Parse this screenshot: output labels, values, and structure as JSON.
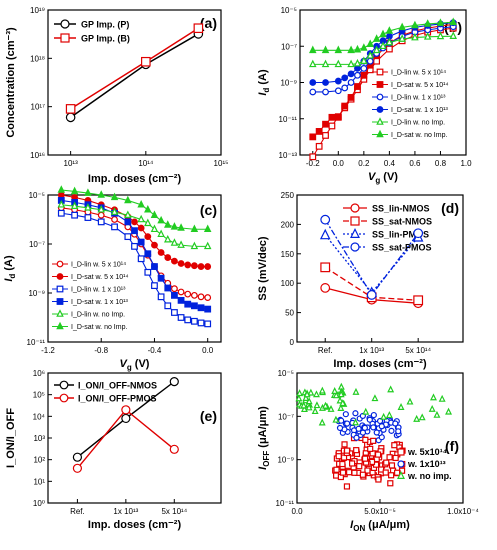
{
  "chart_data": [
    {
      "panel": "(a)",
      "type": "line",
      "xlabel": "Imp. doses (cm⁻²)",
      "ylabel": "Concentration (cm⁻³)",
      "xscale": "log",
      "yscale": "log",
      "xlim": [
        5000000000000.0,
        1000000000000000.0
      ],
      "ylim": [
        1e+16,
        1e+19
      ],
      "xticks": [
        "10¹³",
        "10¹⁴",
        "10¹⁵"
      ],
      "yticks": [
        "10¹⁶",
        "10¹⁷",
        "10¹⁸",
        "10¹⁹"
      ],
      "legend_position": "top-left",
      "series": [
        {
          "name": "GP Imp. (P)",
          "color": "#000000",
          "marker": "circle",
          "x": [
            10000000000000.0,
            100000000000000.0,
            500000000000000.0
          ],
          "y": [
            6e+16,
            7.5e+17,
            3.2e+18
          ]
        },
        {
          "name": "GP Imp. (B)",
          "color": "#e00000",
          "marker": "square",
          "x": [
            10000000000000.0,
            100000000000000.0,
            500000000000000.0
          ],
          "y": [
            9e+16,
            8.5e+17,
            4.2e+18
          ]
        }
      ]
    },
    {
      "panel": "(b)",
      "type": "line",
      "xlabel": "V",
      "xlabel_sub": "g",
      "xunit": "(V)",
      "ylabel": "I",
      "ylabel_sub": "d",
      "yunit": "(A)",
      "yscale": "log",
      "xlim": [
        -0.3,
        1.0
      ],
      "ylim": [
        1e-13,
        1e-05
      ],
      "xticks": [
        "-0.2",
        "0.0",
        "0.2",
        "0.4",
        "0.6",
        "0.8",
        "1.0"
      ],
      "yticks": [
        "10⁻¹³",
        "10⁻¹¹",
        "10⁻⁹",
        "10⁻⁷",
        "10⁻⁵"
      ],
      "legend_position": "bottom-right",
      "series": [
        {
          "name": "I_D-lin  w. 5 x 10¹⁴",
          "color": "#e00000",
          "marker": "square",
          "filled": false,
          "x": [
            -0.2,
            -0.15,
            -0.1,
            -0.05,
            0.0,
            0.05,
            0.1,
            0.15,
            0.2,
            0.25,
            0.3,
            0.4,
            0.5,
            0.6,
            0.7,
            0.8,
            0.9
          ],
          "y": [
            8e-14,
            3e-13,
            1.2e-12,
            4e-12,
            1.3e-11,
            4e-11,
            1.2e-10,
            4e-10,
            1.5e-09,
            5e-09,
            1.5e-08,
            7e-08,
            2e-07,
            4e-07,
            6e-07,
            8e-07,
            1e-06
          ]
        },
        {
          "name": "I_D-sat  w. 5 x 10¹⁴",
          "color": "#e00000",
          "marker": "square",
          "filled": true,
          "x": [
            -0.2,
            -0.15,
            -0.1,
            -0.05,
            0.0,
            0.05,
            0.1,
            0.15,
            0.2,
            0.25,
            0.3,
            0.4,
            0.5,
            0.6,
            0.7,
            0.8,
            0.9
          ],
          "y": [
            1e-12,
            2e-12,
            5e-12,
            1.2e-11,
            1.2e-11,
            5e-11,
            1.5e-10,
            6e-10,
            2.5e-09,
            9e-09,
            3e-08,
            1.5e-07,
            4e-07,
            7e-07,
            1e-06,
            1.3e-06,
            1.6e-06
          ]
        },
        {
          "name": "I_D-lin  w. 1 x 10¹³",
          "color": "#0022dd",
          "marker": "circle",
          "filled": false,
          "x": [
            -0.2,
            -0.1,
            0.0,
            0.05,
            0.1,
            0.15,
            0.2,
            0.25,
            0.3,
            0.35,
            0.4,
            0.5,
            0.6,
            0.7,
            0.8,
            0.9
          ],
          "y": [
            3e-10,
            3e-10,
            3.5e-10,
            5e-10,
            1e-09,
            2.5e-09,
            6e-09,
            1.5e-08,
            4e-08,
            8e-08,
            1.5e-07,
            3.5e-07,
            6e-07,
            8e-07,
            1e-06,
            1.2e-06
          ]
        },
        {
          "name": "I_D-sat  w. 1 x 10¹³",
          "color": "#0022dd",
          "marker": "circle",
          "filled": true,
          "x": [
            -0.2,
            -0.1,
            0.0,
            0.05,
            0.1,
            0.15,
            0.2,
            0.25,
            0.3,
            0.35,
            0.4,
            0.5,
            0.6,
            0.7,
            0.8,
            0.9
          ],
          "y": [
            1e-09,
            1e-09,
            1.2e-09,
            1.8e-09,
            3e-09,
            6e-09,
            1.5e-08,
            4e-08,
            1e-07,
            2e-07,
            3.5e-07,
            7e-07,
            1.1e-06,
            1.4e-06,
            1.7e-06,
            2e-06
          ]
        },
        {
          "name": "I_D-lin  w. no Imp.",
          "color": "#22cc22",
          "marker": "triangle",
          "filled": false,
          "x": [
            -0.2,
            -0.1,
            0.0,
            0.1,
            0.15,
            0.2,
            0.25,
            0.3,
            0.35,
            0.4,
            0.5,
            0.6,
            0.7,
            0.8,
            0.9
          ],
          "y": [
            1e-08,
            1e-08,
            1e-08,
            1e-08,
            1.1e-08,
            1.5e-08,
            3e-08,
            6e-08,
            1e-07,
            1.6e-07,
            2.5e-07,
            3e-07,
            3.3e-07,
            3.5e-07,
            3.6e-07
          ]
        },
        {
          "name": "I_D-sat  w. no Imp.",
          "color": "#22cc22",
          "marker": "triangle",
          "filled": true,
          "x": [
            -0.2,
            -0.1,
            0.0,
            0.1,
            0.15,
            0.2,
            0.25,
            0.3,
            0.35,
            0.4,
            0.5,
            0.6,
            0.7,
            0.8,
            0.9
          ],
          "y": [
            6e-08,
            6e-08,
            6e-08,
            6e-08,
            6.5e-08,
            8e-08,
            1.3e-07,
            2.5e-07,
            4.5e-07,
            7e-07,
            1.1e-06,
            1.4e-06,
            1.7e-06,
            1.9e-06,
            2.1e-06
          ]
        }
      ]
    },
    {
      "panel": "(c)",
      "type": "line",
      "xlabel": "V",
      "xlabel_sub": "g",
      "xunit": "(V)",
      "ylabel": "I",
      "ylabel_sub": "d",
      "yunit": "(A)",
      "yscale": "log",
      "xlim": [
        -1.2,
        0.1
      ],
      "ylim": [
        1e-11,
        1e-05
      ],
      "xticks": [
        "-1.2",
        "-0.8",
        "-0.4",
        "0.0"
      ],
      "yticks": [
        "10⁻¹¹",
        "10⁻⁹",
        "10⁻⁷",
        "10⁻⁵"
      ],
      "legend_position": "bottom-left",
      "series": [
        {
          "name": "I_D-lin  w. 5 x 10¹⁴",
          "color": "#e00000",
          "marker": "circle",
          "filled": false,
          "x": [
            -1.1,
            -1.0,
            -0.9,
            -0.8,
            -0.7,
            -0.6,
            -0.55,
            -0.5,
            -0.45,
            -0.4,
            -0.35,
            -0.3,
            -0.25,
            -0.2,
            -0.15,
            -0.1,
            -0.05,
            0.0
          ],
          "y": [
            3e-06,
            2.5e-06,
            2e-06,
            1.5e-06,
            1e-06,
            5e-07,
            2.5e-07,
            1e-07,
            3.5e-08,
            1.2e-08,
            5e-09,
            2.5e-09,
            1.5e-09,
            1.1e-09,
            9e-10,
            8e-10,
            7e-10,
            6.5e-10
          ]
        },
        {
          "name": "I_D-sat  w. 5 x 10¹⁴",
          "color": "#e00000",
          "marker": "circle",
          "filled": true,
          "x": [
            -1.1,
            -1.0,
            -0.9,
            -0.8,
            -0.7,
            -0.6,
            -0.55,
            -0.5,
            -0.45,
            -0.4,
            -0.35,
            -0.3,
            -0.25,
            -0.2,
            -0.15,
            -0.1,
            -0.05,
            0.0
          ],
          "y": [
            1e-05,
            8e-06,
            6e-06,
            4e-06,
            2.5e-06,
            1.3e-06,
            8e-07,
            4.5e-07,
            2e-07,
            9e-08,
            4.5e-08,
            2.8e-08,
            2e-08,
            1.6e-08,
            1.4e-08,
            1.3e-08,
            1.2e-08,
            1.2e-08
          ]
        },
        {
          "name": "I_D-lin  w. 1 x 10¹³",
          "color": "#0022dd",
          "marker": "square",
          "filled": false,
          "x": [
            -1.1,
            -1.0,
            -0.9,
            -0.8,
            -0.7,
            -0.6,
            -0.55,
            -0.5,
            -0.45,
            -0.4,
            -0.35,
            -0.3,
            -0.25,
            -0.2,
            -0.15,
            -0.1,
            -0.05,
            0.0
          ],
          "y": [
            1.8e-06,
            1.5e-06,
            1.2e-06,
            8e-07,
            5e-07,
            2e-07,
            8e-08,
            2.5e-08,
            7e-09,
            2e-09,
            7e-10,
            3e-10,
            1.6e-10,
            1e-10,
            8e-11,
            7e-11,
            6e-11,
            5.5e-11
          ]
        },
        {
          "name": "I_D-sat  w. 1 x 10¹³",
          "color": "#0022dd",
          "marker": "square",
          "filled": true,
          "x": [
            -1.1,
            -1.0,
            -0.9,
            -0.8,
            -0.7,
            -0.6,
            -0.55,
            -0.5,
            -0.45,
            -0.4,
            -0.35,
            -0.3,
            -0.25,
            -0.2,
            -0.15,
            -0.1,
            -0.05,
            0.0
          ],
          "y": [
            6e-06,
            5e-06,
            4e-06,
            3e-06,
            1.8e-06,
            8e-07,
            3.5e-07,
            1.2e-07,
            4e-08,
            1.2e-08,
            4e-09,
            1.6e-09,
            8e-10,
            5e-10,
            3.5e-10,
            3e-10,
            2.5e-10,
            2.2e-10
          ]
        },
        {
          "name": "I_D-lin  w. no Imp.",
          "color": "#22cc22",
          "marker": "triangle",
          "filled": false,
          "x": [
            -1.1,
            -1.0,
            -0.9,
            -0.8,
            -0.7,
            -0.6,
            -0.5,
            -0.45,
            -0.4,
            -0.35,
            -0.3,
            -0.25,
            -0.2,
            -0.1,
            0.0
          ],
          "y": [
            4e-06,
            3.5e-06,
            3e-06,
            2.5e-06,
            2e-06,
            1.5e-06,
            1e-06,
            7e-07,
            4e-07,
            2.5e-07,
            1.5e-07,
            1.1e-07,
            9e-08,
            8e-08,
            8e-08
          ]
        },
        {
          "name": "I_D-sat  w. no Imp.",
          "color": "#22cc22",
          "marker": "triangle",
          "filled": true,
          "x": [
            -1.1,
            -1.0,
            -0.9,
            -0.8,
            -0.7,
            -0.6,
            -0.5,
            -0.45,
            -0.4,
            -0.35,
            -0.3,
            -0.25,
            -0.2,
            -0.1,
            0.0
          ],
          "y": [
            1.6e-05,
            1.4e-05,
            1.2e-05,
            1e-05,
            8e-06,
            6e-06,
            4e-06,
            2.5e-06,
            1.5e-06,
            9e-07,
            6e-07,
            5e-07,
            4.5e-07,
            4e-07,
            4e-07
          ]
        }
      ]
    },
    {
      "panel": "(d)",
      "type": "line",
      "xlabel": "Imp. doses (cm⁻²)",
      "ylabel": "SS (mV/dec)",
      "ylim": [
        0,
        250
      ],
      "categories": [
        "Ref.",
        "1x 10¹³",
        "5x 10¹⁴"
      ],
      "yticks": [
        "0",
        "50",
        "100",
        "150",
        "200",
        "250"
      ],
      "legend_position": "top-right",
      "series": [
        {
          "name": "SS_lin-NMOS",
          "color": "#e00000",
          "marker": "circle",
          "dash": "solid",
          "values": [
            92,
            72,
            66
          ]
        },
        {
          "name": "SS_sat-NMOS",
          "color": "#e00000",
          "marker": "square",
          "dash": "dashed",
          "values": [
            127,
            76,
            71
          ]
        },
        {
          "name": "SS_lin-PMOS",
          "color": "#0022dd",
          "marker": "triangle",
          "dash": "dotted",
          "values": [
            182,
            84,
            178
          ]
        },
        {
          "name": "SS_sat-PMOS",
          "color": "#0022dd",
          "marker": "circle",
          "dash": "dashdot",
          "values": [
            208,
            80,
            185
          ]
        }
      ]
    },
    {
      "panel": "(e)",
      "type": "line",
      "xlabel": "Imp. doses (cm⁻²)",
      "ylabel": "I_ON/I_OFF",
      "yscale": "log",
      "ylim": [
        1.0,
        1000000.0
      ],
      "categories": [
        "Ref.",
        "1x 10¹³",
        "5x 10¹⁴"
      ],
      "yticks": [
        "10⁰",
        "10¹",
        "10²",
        "10³",
        "10⁴",
        "10⁵",
        "10⁶"
      ],
      "legend_position": "top-left",
      "series": [
        {
          "name": "I_ON/I_OFF-NMOS",
          "color": "#000000",
          "marker": "circle",
          "values": [
            130,
            8000,
            400000
          ]
        },
        {
          "name": "I_ON/I_OFF-PMOS",
          "color": "#e00000",
          "marker": "circle",
          "values": [
            40,
            20000,
            300
          ]
        }
      ]
    },
    {
      "panel": "(f)",
      "type": "scatter",
      "xlabel": "I",
      "xlabel_sub": "ON",
      "xunit": "(μA/μm)",
      "ylabel": "I",
      "ylabel_sub": "OFF",
      "yunit": "(μA/μm)",
      "yscale": "log",
      "xlim": [
        0,
        0.0001
      ],
      "ylim": [
        1e-11,
        1e-05
      ],
      "xticks": [
        "0.0",
        "5.0x10⁻⁵",
        "1.0x10⁻⁴"
      ],
      "yticks": [
        "10⁻¹¹",
        "10⁻⁹",
        "10⁻⁷",
        "10⁻⁵"
      ],
      "legend_position": "bottom-right",
      "series": [
        {
          "name": "w. 5x10¹⁴",
          "color": "#e00000",
          "marker": "square",
          "x_range": [
            2.3e-05,
            6.5e-05
          ],
          "y_range": [
            1e-10,
            1e-08
          ],
          "count": 110
        },
        {
          "name": "w. 1x10¹³",
          "color": "#0022dd",
          "marker": "circle",
          "x_range": [
            2.5e-05,
            6.2e-05
          ],
          "y_range": [
            1e-08,
            1.5e-07
          ],
          "count": 65
        },
        {
          "name": "w. no imp.",
          "color": "#22cc22",
          "marker": "triangle",
          "x_range": [
            1e-06,
            9.5e-05
          ],
          "y_range": [
            4e-08,
            3e-06
          ],
          "count": 55
        }
      ]
    }
  ]
}
